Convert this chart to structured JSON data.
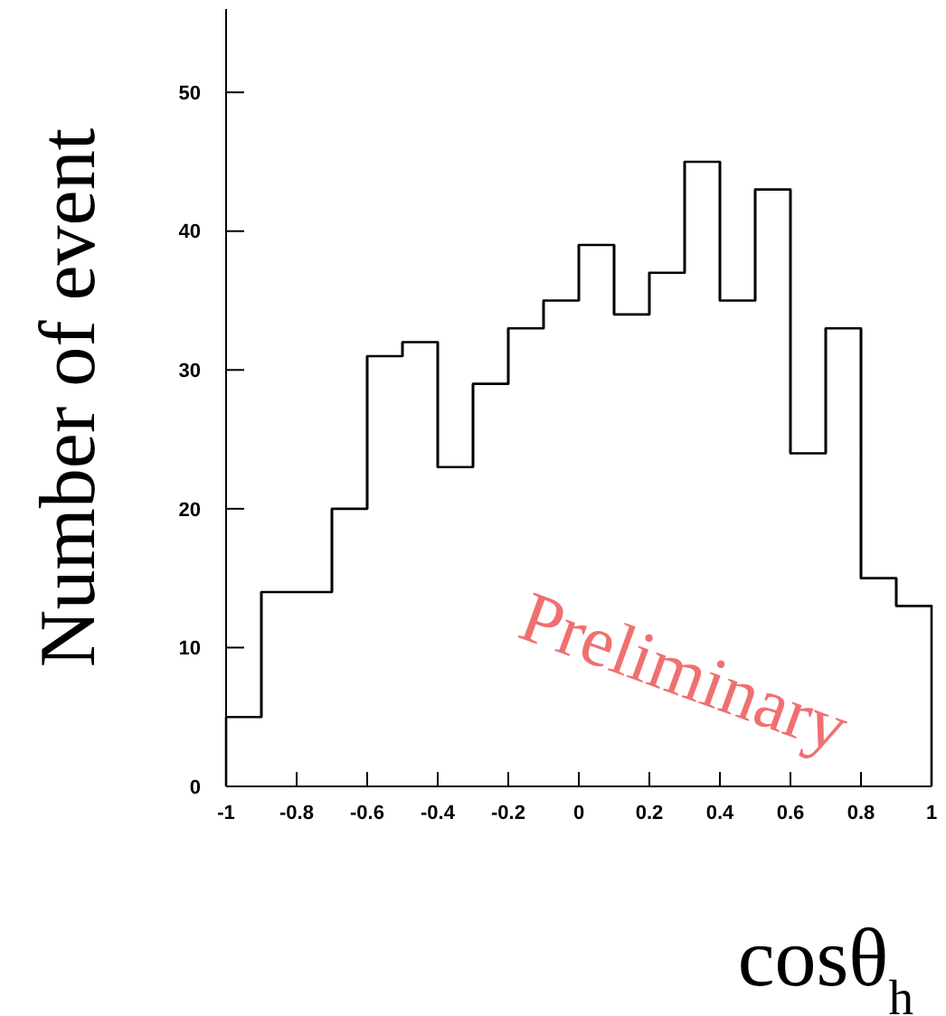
{
  "chart_data": {
    "type": "histogram",
    "xlabel": "cosθ$_{h}$",
    "ylabel": "Number of event",
    "bins": [
      -1,
      -0.9,
      -0.8,
      -0.7,
      -0.6,
      -0.5,
      -0.4,
      -0.3,
      -0.2,
      -0.1,
      0,
      0.1,
      0.2,
      0.3,
      0.4,
      0.5,
      0.6,
      0.7,
      0.8,
      0.9,
      1
    ],
    "values": [
      5,
      14,
      14,
      20,
      31,
      32,
      23,
      29,
      33,
      35,
      39,
      34,
      37,
      45,
      35,
      43,
      24,
      33,
      15,
      13
    ],
    "color": "#000000",
    "xlim": [
      -1,
      1
    ],
    "xticks": [
      -1,
      -0.8,
      -0.6,
      -0.4,
      -0.2,
      0,
      0.2,
      0.4,
      0.6,
      0.8,
      1
    ],
    "ylim": [
      0,
      56
    ],
    "yticks": [
      0,
      10,
      20,
      30,
      40,
      50
    ],
    "annotations": [
      "Preliminary"
    ]
  }
}
